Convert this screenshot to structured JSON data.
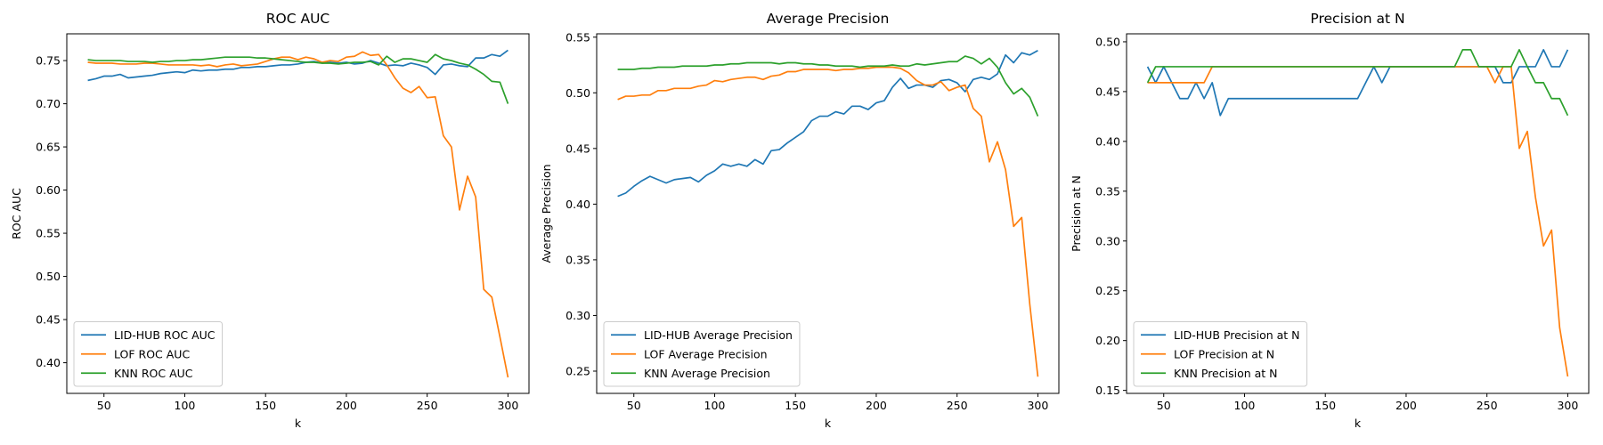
{
  "chart_data": [
    {
      "type": "line",
      "title": "ROC AUC",
      "xlabel": "k",
      "ylabel": "ROC AUC",
      "x": [
        40,
        45,
        50,
        55,
        60,
        65,
        70,
        75,
        80,
        85,
        90,
        95,
        100,
        105,
        110,
        115,
        120,
        125,
        130,
        135,
        140,
        145,
        150,
        155,
        160,
        165,
        170,
        175,
        180,
        185,
        190,
        195,
        200,
        205,
        210,
        215,
        220,
        225,
        230,
        235,
        240,
        245,
        250,
        255,
        260,
        265,
        270,
        275,
        280,
        285,
        290,
        295,
        300
      ],
      "xlim": [
        27,
        313
      ],
      "xticks": [
        50,
        100,
        150,
        200,
        250,
        300
      ],
      "ylim": [
        0.3645,
        0.781
      ],
      "yticks": [
        {
          "value": 0.4,
          "label": "0.40"
        },
        0.45,
        {
          "value": 0.5,
          "label": "0.50"
        },
        0.55,
        {
          "value": 0.6,
          "label": "0.60"
        },
        0.65,
        {
          "value": 0.7,
          "label": "0.70"
        },
        0.75
      ],
      "legend": "lower left",
      "series": [
        {
          "name": "LID-HUB ROC AUC",
          "color": "#1f77b4",
          "values": [
            0.727,
            0.729,
            0.732,
            0.732,
            0.734,
            0.73,
            0.731,
            0.732,
            0.733,
            0.735,
            0.736,
            0.737,
            0.736,
            0.739,
            0.738,
            0.739,
            0.739,
            0.74,
            0.74,
            0.742,
            0.742,
            0.743,
            0.743,
            0.744,
            0.745,
            0.745,
            0.746,
            0.748,
            0.749,
            0.747,
            0.748,
            0.747,
            0.748,
            0.746,
            0.747,
            0.75,
            0.747,
            0.744,
            0.745,
            0.744,
            0.747,
            0.745,
            0.742,
            0.734,
            0.745,
            0.746,
            0.744,
            0.743,
            0.753,
            0.753,
            0.757,
            0.755,
            0.762
          ]
        },
        {
          "name": "LOF ROC AUC",
          "color": "#ff7f0e",
          "values": [
            0.748,
            0.747,
            0.747,
            0.747,
            0.746,
            0.746,
            0.746,
            0.747,
            0.747,
            0.746,
            0.745,
            0.745,
            0.745,
            0.745,
            0.744,
            0.745,
            0.743,
            0.745,
            0.746,
            0.744,
            0.745,
            0.746,
            0.749,
            0.752,
            0.754,
            0.754,
            0.751,
            0.754,
            0.752,
            0.748,
            0.75,
            0.749,
            0.754,
            0.755,
            0.76,
            0.756,
            0.757,
            0.745,
            0.73,
            0.718,
            0.713,
            0.72,
            0.707,
            0.708,
            0.663,
            0.65,
            0.577,
            0.616,
            0.592,
            0.485,
            0.476,
            0.43,
            0.383
          ]
        },
        {
          "name": "KNN ROC AUC",
          "color": "#2ca02c",
          "values": [
            0.751,
            0.75,
            0.75,
            0.75,
            0.75,
            0.749,
            0.749,
            0.749,
            0.748,
            0.749,
            0.749,
            0.75,
            0.75,
            0.751,
            0.751,
            0.752,
            0.753,
            0.754,
            0.754,
            0.754,
            0.754,
            0.753,
            0.753,
            0.752,
            0.751,
            0.75,
            0.749,
            0.748,
            0.748,
            0.747,
            0.747,
            0.746,
            0.747,
            0.748,
            0.748,
            0.749,
            0.745,
            0.755,
            0.748,
            0.752,
            0.752,
            0.75,
            0.748,
            0.757,
            0.752,
            0.75,
            0.747,
            0.745,
            0.74,
            0.734,
            0.726,
            0.725,
            0.7
          ]
        }
      ]
    },
    {
      "type": "line",
      "title": "Average Precision",
      "xlabel": "k",
      "ylabel": "Average Precision",
      "x": [
        40,
        45,
        50,
        55,
        60,
        65,
        70,
        75,
        80,
        85,
        90,
        95,
        100,
        105,
        110,
        115,
        120,
        125,
        130,
        135,
        140,
        145,
        150,
        155,
        160,
        165,
        170,
        175,
        180,
        185,
        190,
        195,
        200,
        205,
        210,
        215,
        220,
        225,
        230,
        235,
        240,
        245,
        250,
        255,
        260,
        265,
        270,
        275,
        280,
        285,
        290,
        295,
        300
      ],
      "xlim": [
        27,
        313
      ],
      "xticks": [
        50,
        100,
        150,
        200,
        250,
        300
      ],
      "ylim": [
        0.23,
        0.553
      ],
      "yticks": [
        0.25,
        {
          "value": 0.3,
          "label": "0.30"
        },
        0.35,
        {
          "value": 0.4,
          "label": "0.40"
        },
        0.45,
        {
          "value": 0.5,
          "label": "0.50"
        },
        0.55
      ],
      "legend": "lower left",
      "series": [
        {
          "name": "LID-HUB Average Precision",
          "color": "#1f77b4",
          "values": [
            0.407,
            0.41,
            0.416,
            0.421,
            0.425,
            0.422,
            0.419,
            0.422,
            0.423,
            0.424,
            0.42,
            0.426,
            0.43,
            0.436,
            0.434,
            0.436,
            0.434,
            0.44,
            0.436,
            0.448,
            0.449,
            0.455,
            0.46,
            0.465,
            0.475,
            0.479,
            0.479,
            0.483,
            0.481,
            0.488,
            0.488,
            0.485,
            0.491,
            0.493,
            0.505,
            0.513,
            0.504,
            0.507,
            0.507,
            0.505,
            0.511,
            0.512,
            0.509,
            0.501,
            0.512,
            0.514,
            0.512,
            0.517,
            0.534,
            0.527,
            0.536,
            0.534,
            0.538
          ]
        },
        {
          "name": "LOF Average Precision",
          "color": "#ff7f0e",
          "values": [
            0.494,
            0.497,
            0.497,
            0.498,
            0.498,
            0.502,
            0.502,
            0.504,
            0.504,
            0.504,
            0.506,
            0.507,
            0.511,
            0.51,
            0.512,
            0.513,
            0.514,
            0.514,
            0.512,
            0.515,
            0.516,
            0.519,
            0.519,
            0.521,
            0.521,
            0.521,
            0.521,
            0.52,
            0.521,
            0.521,
            0.522,
            0.522,
            0.523,
            0.523,
            0.523,
            0.522,
            0.518,
            0.511,
            0.507,
            0.507,
            0.51,
            0.502,
            0.505,
            0.507,
            0.486,
            0.479,
            0.438,
            0.456,
            0.431,
            0.38,
            0.388,
            0.31,
            0.245
          ]
        },
        {
          "name": "KNN Average Precision",
          "color": "#2ca02c",
          "values": [
            0.521,
            0.521,
            0.521,
            0.522,
            0.522,
            0.523,
            0.523,
            0.523,
            0.524,
            0.524,
            0.524,
            0.524,
            0.525,
            0.525,
            0.526,
            0.526,
            0.527,
            0.527,
            0.527,
            0.527,
            0.526,
            0.527,
            0.527,
            0.526,
            0.526,
            0.525,
            0.525,
            0.524,
            0.524,
            0.524,
            0.523,
            0.524,
            0.524,
            0.524,
            0.525,
            0.524,
            0.524,
            0.526,
            0.525,
            0.526,
            0.527,
            0.528,
            0.528,
            0.533,
            0.531,
            0.526,
            0.531,
            0.523,
            0.509,
            0.499,
            0.504,
            0.496,
            0.479
          ]
        }
      ]
    },
    {
      "type": "line",
      "title": "Precision at N",
      "xlabel": "k",
      "ylabel": "Precision at N",
      "x": [
        40,
        45,
        50,
        55,
        60,
        65,
        70,
        75,
        80,
        85,
        90,
        95,
        100,
        105,
        110,
        115,
        120,
        125,
        130,
        135,
        140,
        145,
        150,
        155,
        160,
        165,
        170,
        175,
        180,
        185,
        190,
        195,
        200,
        205,
        210,
        215,
        220,
        225,
        230,
        235,
        240,
        245,
        250,
        255,
        260,
        265,
        270,
        275,
        280,
        285,
        290,
        295,
        300
      ],
      "xlim": [
        27,
        313
      ],
      "xticks": [
        50,
        100,
        150,
        200,
        250,
        300
      ],
      "ylim": [
        0.147,
        0.508
      ],
      "yticks": [
        0.15,
        {
          "value": 0.2,
          "label": "0.20"
        },
        0.25,
        {
          "value": 0.3,
          "label": "0.30"
        },
        0.35,
        {
          "value": 0.4,
          "label": "0.40"
        },
        0.45,
        {
          "value": 0.5,
          "label": "0.50"
        }
      ],
      "legend": "lower left",
      "series": [
        {
          "name": "LID-HUB Precision at N",
          "color": "#1f77b4",
          "values": [
            0.475,
            0.459,
            0.475,
            0.459,
            0.443,
            0.443,
            0.459,
            0.443,
            0.459,
            0.426,
            0.443,
            0.443,
            0.443,
            0.443,
            0.443,
            0.443,
            0.443,
            0.443,
            0.443,
            0.443,
            0.443,
            0.443,
            0.443,
            0.443,
            0.443,
            0.443,
            0.443,
            0.459,
            0.475,
            0.459,
            0.475,
            0.475,
            0.475,
            0.475,
            0.475,
            0.475,
            0.475,
            0.475,
            0.475,
            0.475,
            0.475,
            0.475,
            0.475,
            0.475,
            0.459,
            0.459,
            0.475,
            0.475,
            0.475,
            0.492,
            0.475,
            0.475,
            0.492
          ]
        },
        {
          "name": "LOF Precision at N",
          "color": "#ff7f0e",
          "values": [
            0.459,
            0.459,
            0.459,
            0.459,
            0.459,
            0.459,
            0.459,
            0.459,
            0.475,
            0.475,
            0.475,
            0.475,
            0.475,
            0.475,
            0.475,
            0.475,
            0.475,
            0.475,
            0.475,
            0.475,
            0.475,
            0.475,
            0.475,
            0.475,
            0.475,
            0.475,
            0.475,
            0.475,
            0.475,
            0.475,
            0.475,
            0.475,
            0.475,
            0.475,
            0.475,
            0.475,
            0.475,
            0.475,
            0.475,
            0.475,
            0.475,
            0.475,
            0.475,
            0.459,
            0.475,
            0.475,
            0.393,
            0.41,
            0.344,
            0.295,
            0.311,
            0.213,
            0.164
          ]
        },
        {
          "name": "KNN Precision at N",
          "color": "#2ca02c",
          "values": [
            0.459,
            0.475,
            0.475,
            0.475,
            0.475,
            0.475,
            0.475,
            0.475,
            0.475,
            0.475,
            0.475,
            0.475,
            0.475,
            0.475,
            0.475,
            0.475,
            0.475,
            0.475,
            0.475,
            0.475,
            0.475,
            0.475,
            0.475,
            0.475,
            0.475,
            0.475,
            0.475,
            0.475,
            0.475,
            0.475,
            0.475,
            0.475,
            0.475,
            0.475,
            0.475,
            0.475,
            0.475,
            0.475,
            0.475,
            0.492,
            0.492,
            0.475,
            0.475,
            0.475,
            0.475,
            0.475,
            0.492,
            0.475,
            0.459,
            0.459,
            0.443,
            0.443,
            0.426
          ]
        }
      ]
    }
  ]
}
